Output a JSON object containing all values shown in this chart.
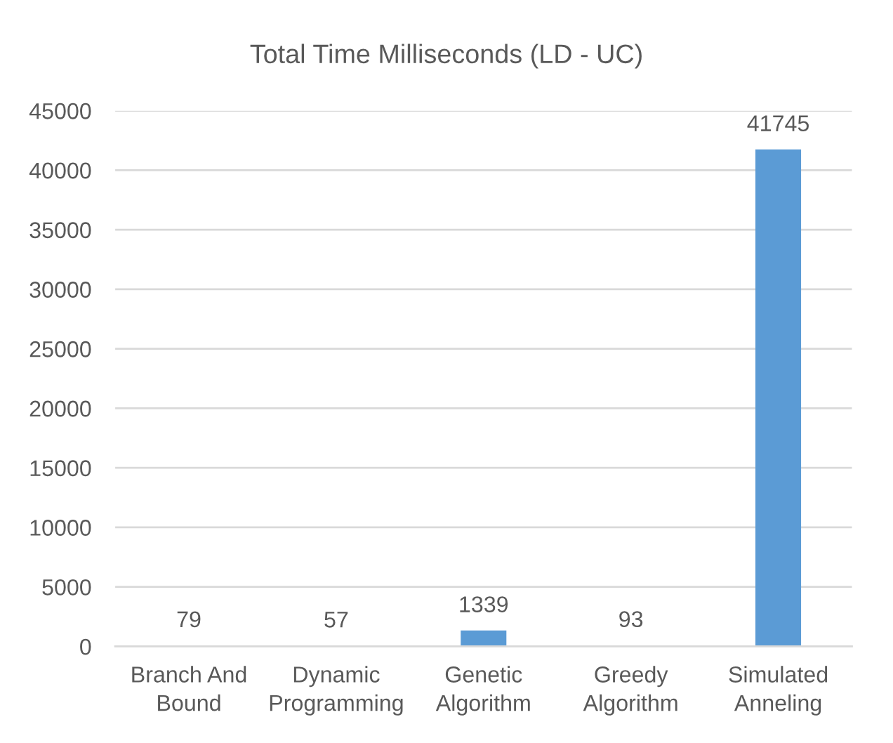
{
  "chart_data": {
    "type": "bar",
    "title": "Total Time Milliseconds (LD - UC)",
    "categories": [
      "Branch And\nBound",
      "Dynamic\nProgramming",
      "Genetic\nAlgorithm",
      "Greedy\nAlgorithm",
      "Simulated\nAnneling"
    ],
    "values": [
      79,
      57,
      1339,
      93,
      41745
    ],
    "color": "#5b9bd5",
    "ylim": [
      0,
      45000
    ],
    "yticks": [
      0,
      5000,
      10000,
      15000,
      20000,
      25000,
      30000,
      35000,
      40000,
      45000
    ],
    "grid": "y",
    "data_labels": true
  }
}
